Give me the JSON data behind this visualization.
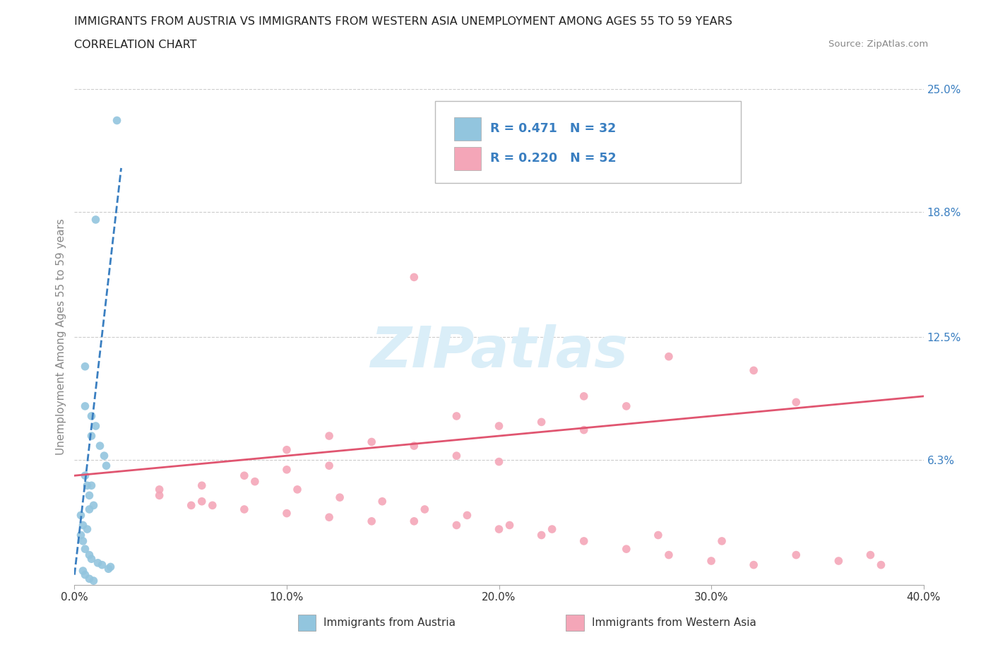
{
  "title_line1": "IMMIGRANTS FROM AUSTRIA VS IMMIGRANTS FROM WESTERN ASIA UNEMPLOYMENT AMONG AGES 55 TO 59 YEARS",
  "title_line2": "CORRELATION CHART",
  "source_text": "Source: ZipAtlas.com",
  "ylabel": "Unemployment Among Ages 55 to 59 years",
  "xlim": [
    0,
    0.4
  ],
  "ylim": [
    0,
    0.25
  ],
  "xtick_labels": [
    "0.0%",
    "10.0%",
    "20.0%",
    "30.0%",
    "40.0%"
  ],
  "xtick_values": [
    0.0,
    0.1,
    0.2,
    0.3,
    0.4
  ],
  "ytick_values": [
    0.063,
    0.125,
    0.188,
    0.25
  ],
  "ytick_labels": [
    "6.3%",
    "12.5%",
    "18.8%",
    "25.0%"
  ],
  "austria_color": "#92c5de",
  "western_asia_color": "#f4a6b8",
  "austria_line_color": "#3a7fc1",
  "western_asia_line_color": "#e05570",
  "legend_text_color": "#3a7fc1",
  "austria_R": 0.471,
  "austria_N": 32,
  "western_asia_R": 0.22,
  "western_asia_N": 52,
  "watermark_color": "#daeef8",
  "austria_x": [
    0.02,
    0.01,
    0.005,
    0.005,
    0.008,
    0.01,
    0.008,
    0.012,
    0.014,
    0.015,
    0.005,
    0.006,
    0.008,
    0.007,
    0.009,
    0.007,
    0.003,
    0.004,
    0.006,
    0.003,
    0.004,
    0.005,
    0.007,
    0.008,
    0.011,
    0.013,
    0.017,
    0.016,
    0.004,
    0.005,
    0.007,
    0.009
  ],
  "austria_y": [
    0.234,
    0.184,
    0.11,
    0.09,
    0.085,
    0.08,
    0.075,
    0.07,
    0.065,
    0.06,
    0.055,
    0.05,
    0.05,
    0.045,
    0.04,
    0.038,
    0.035,
    0.03,
    0.028,
    0.025,
    0.022,
    0.018,
    0.015,
    0.013,
    0.011,
    0.01,
    0.009,
    0.008,
    0.007,
    0.005,
    0.003,
    0.002
  ],
  "western_x": [
    0.28,
    0.32,
    0.16,
    0.24,
    0.26,
    0.34,
    0.18,
    0.2,
    0.22,
    0.24,
    0.12,
    0.14,
    0.16,
    0.18,
    0.2,
    0.1,
    0.12,
    0.1,
    0.08,
    0.06,
    0.04,
    0.04,
    0.06,
    0.065,
    0.08,
    0.1,
    0.12,
    0.14,
    0.16,
    0.18,
    0.2,
    0.22,
    0.24,
    0.26,
    0.28,
    0.3,
    0.32,
    0.34,
    0.36,
    0.38,
    0.085,
    0.105,
    0.125,
    0.055,
    0.145,
    0.165,
    0.185,
    0.205,
    0.275,
    0.225,
    0.305,
    0.375
  ],
  "western_y": [
    0.115,
    0.108,
    0.155,
    0.095,
    0.09,
    0.092,
    0.085,
    0.08,
    0.082,
    0.078,
    0.075,
    0.072,
    0.07,
    0.065,
    0.062,
    0.068,
    0.06,
    0.058,
    0.055,
    0.05,
    0.048,
    0.045,
    0.042,
    0.04,
    0.038,
    0.036,
    0.034,
    0.032,
    0.032,
    0.03,
    0.028,
    0.025,
    0.022,
    0.018,
    0.015,
    0.012,
    0.01,
    0.015,
    0.012,
    0.01,
    0.052,
    0.048,
    0.044,
    0.04,
    0.042,
    0.038,
    0.035,
    0.03,
    0.025,
    0.028,
    0.022,
    0.015
  ],
  "aus_line_x": [
    0.0,
    0.022
  ],
  "aus_line_y": [
    0.005,
    0.21
  ],
  "wes_line_x": [
    0.0,
    0.4
  ],
  "wes_line_y": [
    0.055,
    0.095
  ],
  "background_color": "#ffffff",
  "grid_color": "#cccccc"
}
